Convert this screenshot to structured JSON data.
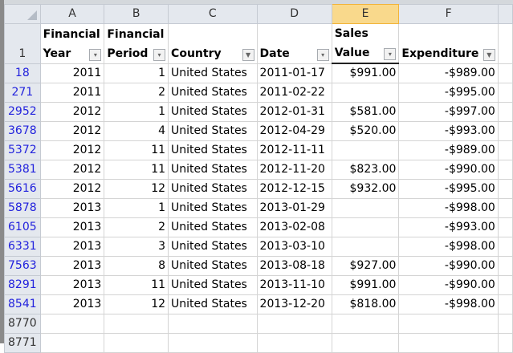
{
  "columns": [
    "A",
    "B",
    "C",
    "D",
    "E",
    "F"
  ],
  "header_row": {
    "num": "1",
    "cells": [
      {
        "line1": "Financial",
        "line2": "Year",
        "filter": "dropdown-icon"
      },
      {
        "line1": "Financial",
        "line2": "Period",
        "filter": "dropdown-icon"
      },
      {
        "line1": "",
        "line2": "Country",
        "filter": "filter-funnel-icon"
      },
      {
        "line1": "",
        "line2": "Date",
        "filter": "dropdown-icon"
      },
      {
        "line1": "Sales",
        "line2": "Value",
        "filter": "dropdown-icon"
      },
      {
        "line1": "",
        "line2": "Expenditure",
        "filter": "filter-funnel-icon"
      }
    ]
  },
  "rows": [
    {
      "num": "18",
      "year": "2011",
      "period": "1",
      "country": "United States",
      "date": "2011-01-17",
      "sales": "$991.00",
      "exp": "-$989.00"
    },
    {
      "num": "271",
      "year": "2011",
      "period": "2",
      "country": "United States",
      "date": "2011-02-22",
      "sales": "",
      "exp": "-$995.00"
    },
    {
      "num": "2952",
      "year": "2012",
      "period": "1",
      "country": "United States",
      "date": "2012-01-31",
      "sales": "$581.00",
      "exp": "-$997.00"
    },
    {
      "num": "3678",
      "year": "2012",
      "period": "4",
      "country": "United States",
      "date": "2012-04-29",
      "sales": "$520.00",
      "exp": "-$993.00"
    },
    {
      "num": "5372",
      "year": "2012",
      "period": "11",
      "country": "United States",
      "date": "2012-11-11",
      "sales": "",
      "exp": "-$989.00"
    },
    {
      "num": "5381",
      "year": "2012",
      "period": "11",
      "country": "United States",
      "date": "2012-11-20",
      "sales": "$823.00",
      "exp": "-$990.00"
    },
    {
      "num": "5616",
      "year": "2012",
      "period": "12",
      "country": "United States",
      "date": "2012-12-15",
      "sales": "$932.00",
      "exp": "-$995.00"
    },
    {
      "num": "5878",
      "year": "2013",
      "period": "1",
      "country": "United States",
      "date": "2013-01-29",
      "sales": "",
      "exp": "-$998.00"
    },
    {
      "num": "6105",
      "year": "2013",
      "period": "2",
      "country": "United States",
      "date": "2013-02-08",
      "sales": "",
      "exp": "-$993.00"
    },
    {
      "num": "6331",
      "year": "2013",
      "period": "3",
      "country": "United States",
      "date": "2013-03-10",
      "sales": "",
      "exp": "-$998.00"
    },
    {
      "num": "7563",
      "year": "2013",
      "period": "8",
      "country": "United States",
      "date": "2013-08-18",
      "sales": "$927.00",
      "exp": "-$990.00"
    },
    {
      "num": "8291",
      "year": "2013",
      "period": "11",
      "country": "United States",
      "date": "2013-11-10",
      "sales": "$991.00",
      "exp": "-$990.00"
    },
    {
      "num": "8541",
      "year": "2013",
      "period": "12",
      "country": "United States",
      "date": "2013-12-20",
      "sales": "$818.00",
      "exp": "-$998.00"
    }
  ],
  "empty_rows": [
    "8770",
    "8771"
  ],
  "selected_column": "E"
}
